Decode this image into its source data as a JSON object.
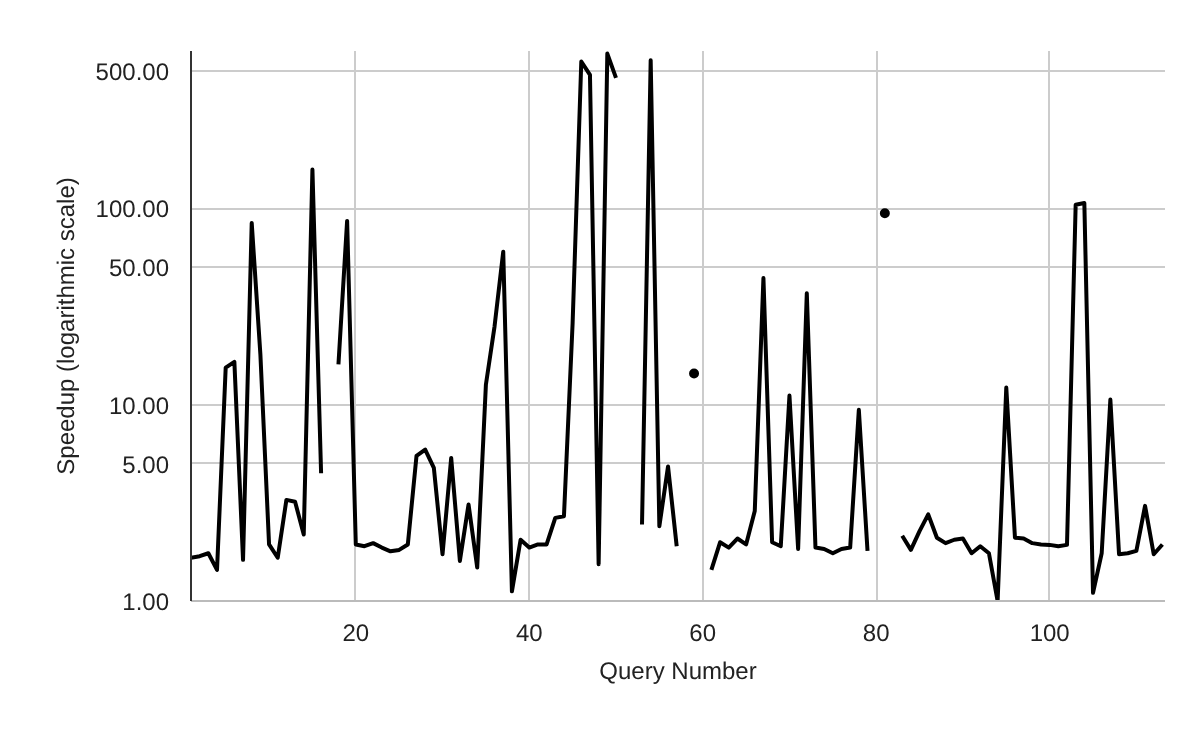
{
  "chart_data": {
    "type": "line",
    "xlabel": "Query Number",
    "ylabel": "Speedup (logarithmic scale)",
    "log": "y",
    "grid": true,
    "marker": "none",
    "line_style": "solid",
    "x": [
      1,
      2,
      3,
      4,
      5,
      6,
      7,
      8,
      9,
      10,
      11,
      12,
      13,
      14,
      15,
      16,
      17,
      18,
      19,
      20,
      21,
      22,
      23,
      24,
      25,
      26,
      27,
      28,
      29,
      30,
      31,
      32,
      33,
      34,
      35,
      36,
      37,
      38,
      39,
      40,
      41,
      42,
      43,
      44,
      45,
      46,
      47,
      48,
      49,
      50,
      51,
      52,
      53,
      54,
      55,
      56,
      57,
      58,
      59,
      60,
      61,
      62,
      63,
      64,
      65,
      66,
      67,
      68,
      69,
      70,
      71,
      72,
      73,
      74,
      75,
      76,
      77,
      78,
      79,
      80,
      81,
      82,
      83,
      84,
      85,
      86,
      87,
      88,
      89,
      90,
      91,
      92,
      93,
      94,
      95,
      96,
      97,
      98,
      99,
      100,
      101,
      102,
      103,
      104,
      105,
      106,
      107,
      108,
      109,
      110,
      111,
      112,
      113
    ],
    "series": [
      {
        "color": "#000000",
        "values": [
          1.66,
          1.69,
          1.75,
          1.44,
          15.4,
          16.5,
          1.62,
          84,
          18,
          1.94,
          1.66,
          3.27,
          3.2,
          2.18,
          157,
          4.47,
          null,
          16,
          86,
          1.94,
          1.9,
          1.97,
          1.87,
          1.79,
          1.82,
          1.94,
          5.48,
          5.9,
          4.76,
          1.73,
          5.35,
          1.6,
          3.1,
          1.48,
          12.6,
          25,
          60,
          1.12,
          2.05,
          1.87,
          1.94,
          1.94,
          2.65,
          2.7,
          26,
          557,
          476,
          1.54,
          611,
          460,
          null,
          null,
          2.45,
          565,
          2.4,
          4.84,
          1.9,
          null,
          14.4,
          null,
          1.44,
          1.99,
          1.87,
          2.08,
          1.94,
          2.87,
          44,
          1.99,
          1.9,
          11.1,
          1.84,
          36.8,
          1.87,
          1.84,
          1.75,
          1.84,
          1.87,
          9.4,
          1.8,
          null,
          94,
          null,
          2.15,
          1.82,
          2.27,
          2.76,
          2.1,
          1.97,
          2.05,
          2.08,
          1.75,
          1.9,
          1.75,
          1.0,
          12.2,
          2.1,
          2.08,
          1.97,
          1.94,
          1.93,
          1.9,
          1.93,
          104,
          106,
          1.1,
          1.75,
          10.6,
          1.73,
          1.75,
          1.8,
          3.05,
          1.73,
          1.94
        ]
      }
    ],
    "xlim": [
      1,
      113.3
    ],
    "ylim": [
      1,
      630
    ],
    "xticks": [
      20,
      40,
      60,
      80,
      100
    ],
    "yticks": [
      {
        "value": 1,
        "label": "1.00"
      },
      {
        "value": 5,
        "label": "5.00"
      },
      {
        "value": 10,
        "label": "10.00"
      },
      {
        "value": 50,
        "label": "50.00"
      },
      {
        "value": 100,
        "label": "100.00"
      },
      {
        "value": 500,
        "label": "500.00"
      }
    ]
  }
}
